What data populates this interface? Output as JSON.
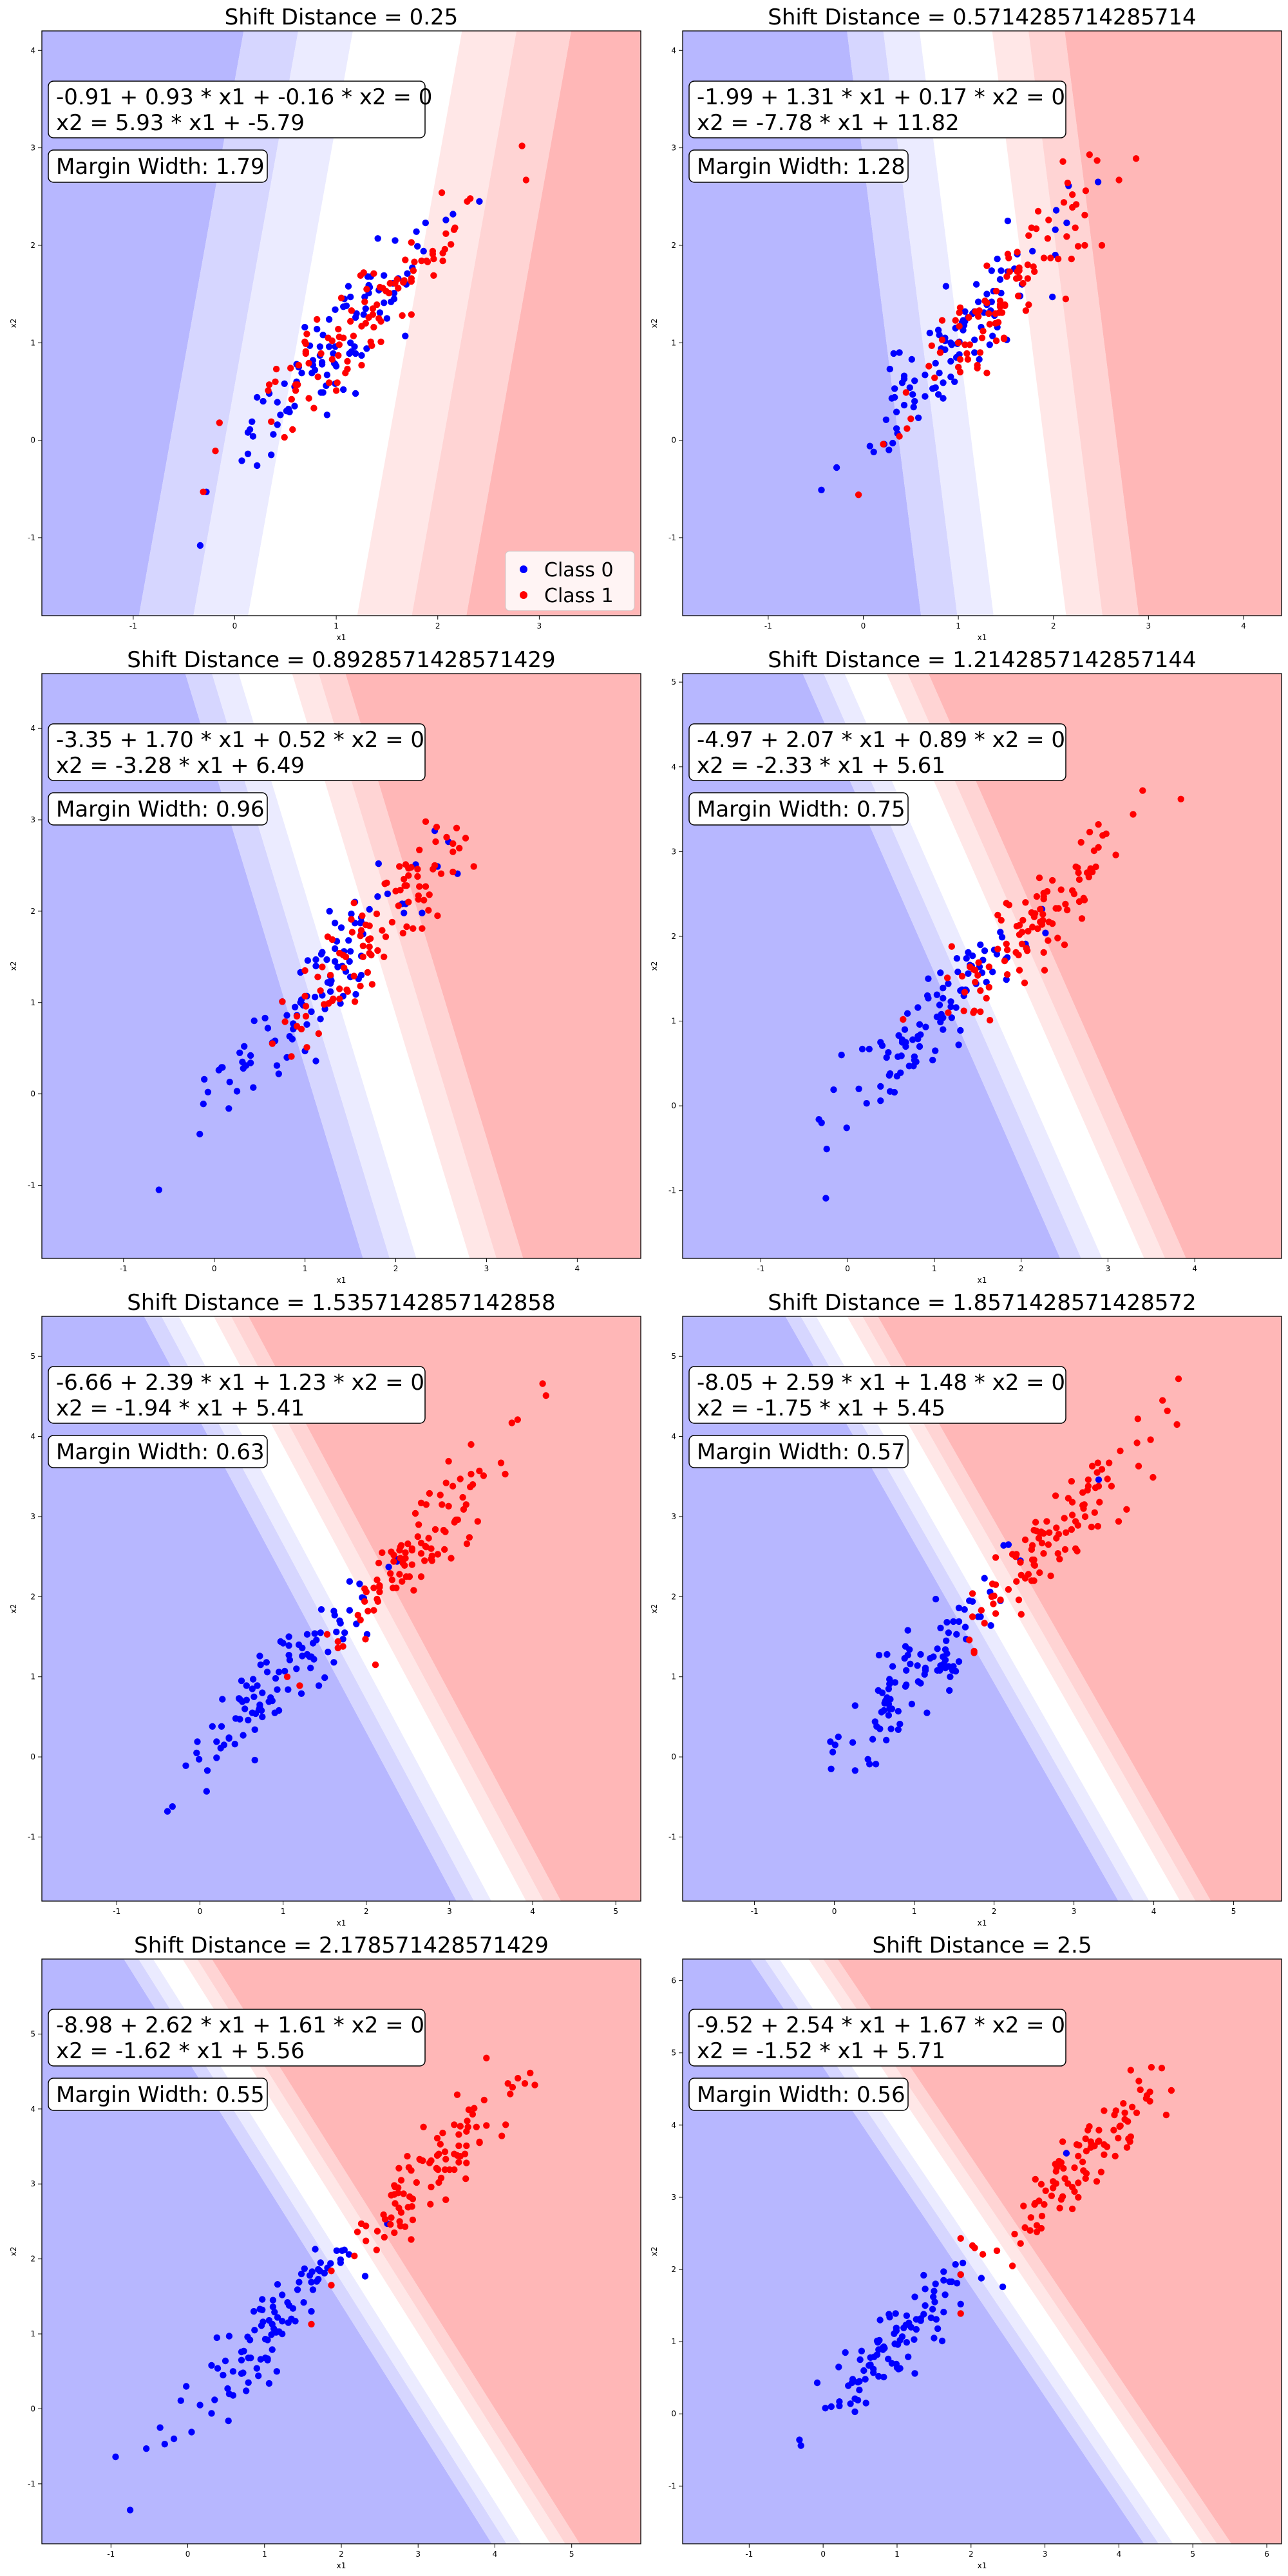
{
  "figure": {
    "rows": 4,
    "cols": 2
  },
  "colors": {
    "class0": "#0000ff",
    "class1": "#ff0000",
    "bg_neg_strong": "#b7b7ff",
    "bg_neg_mid": "#d6d6ff",
    "bg_neg_light": "#ebebff",
    "bg_white": "#ffffff",
    "bg_pos_light": "#ffe7e7",
    "bg_pos_mid": "#ffd4d4",
    "bg_pos_strong": "#ffb7b7"
  },
  "legend": {
    "panel_index": 0,
    "placement": "lower right",
    "entries": [
      "Class 0",
      "Class 1"
    ]
  },
  "chart_data": [
    {
      "type": "scatter",
      "title": "Shift Distance = 0.25",
      "xlabel": "x1",
      "ylabel": "x2",
      "xlim": [
        -1.9,
        4.0
      ],
      "ylim": [
        -1.8,
        4.2
      ],
      "xticks": [
        -1,
        0,
        1,
        2,
        3
      ],
      "yticks": [
        -1,
        0,
        1,
        2,
        3,
        4
      ],
      "equation": "-0.91 + 0.93 * x1 + -0.16 * x2 = 0",
      "line_equation": "x2 = 5.93 * x1 + -5.79",
      "margin_width": "Margin Width: 1.79",
      "shift": 0.25,
      "decision": {
        "b": -0.91,
        "w1": 0.93,
        "w2": -0.16
      },
      "series": [
        {
          "name": "Class 0",
          "points": []
        },
        {
          "name": "Class 1",
          "points": []
        }
      ]
    },
    {
      "type": "scatter",
      "title": "Shift Distance = 0.5714285714285714",
      "xlabel": "x1",
      "ylabel": "x2",
      "xlim": [
        -1.9,
        4.4
      ],
      "ylim": [
        -1.8,
        4.2
      ],
      "xticks": [
        -1,
        0,
        1,
        2,
        3,
        4
      ],
      "yticks": [
        -1,
        0,
        1,
        2,
        3,
        4
      ],
      "equation": "-1.99 + 1.31 * x1 + 0.17 * x2 = 0",
      "line_equation": "x2 = -7.78 * x1 + 11.82",
      "margin_width": "Margin Width: 1.28",
      "shift": 0.5714285714285714,
      "decision": {
        "b": -1.99,
        "w1": 1.31,
        "w2": 0.17
      },
      "series": [
        {
          "name": "Class 0",
          "points": []
        },
        {
          "name": "Class 1",
          "points": []
        }
      ]
    },
    {
      "type": "scatter",
      "title": "Shift Distance = 0.8928571428571429",
      "xlabel": "x1",
      "ylabel": "x2",
      "xlim": [
        -1.9,
        4.7
      ],
      "ylim": [
        -1.8,
        4.6
      ],
      "xticks": [
        -1,
        0,
        1,
        2,
        3,
        4
      ],
      "yticks": [
        -1,
        0,
        1,
        2,
        3,
        4
      ],
      "equation": "-3.35 + 1.70 * x1 + 0.52 * x2 = 0",
      "line_equation": "x2 = -3.28 * x1 + 6.49",
      "margin_width": "Margin Width: 0.96",
      "shift": 0.8928571428571429,
      "decision": {
        "b": -3.35,
        "w1": 1.7,
        "w2": 0.52
      },
      "series": [
        {
          "name": "Class 0",
          "points": []
        },
        {
          "name": "Class 1",
          "points": []
        }
      ]
    },
    {
      "type": "scatter",
      "title": "Shift Distance = 1.2142857142857144",
      "xlabel": "x1",
      "ylabel": "x2",
      "xlim": [
        -1.9,
        5.0
      ],
      "ylim": [
        -1.8,
        5.1
      ],
      "xticks": [
        -1,
        0,
        1,
        2,
        3,
        4
      ],
      "yticks": [
        -1,
        0,
        1,
        2,
        3,
        4,
        5
      ],
      "equation": "-4.97 + 2.07 * x1 + 0.89 * x2 = 0",
      "line_equation": "x2 = -2.33 * x1 + 5.61",
      "margin_width": "Margin Width: 0.75",
      "shift": 1.2142857142857144,
      "decision": {
        "b": -4.97,
        "w1": 2.07,
        "w2": 0.89
      },
      "series": [
        {
          "name": "Class 0",
          "points": []
        },
        {
          "name": "Class 1",
          "points": []
        }
      ]
    },
    {
      "type": "scatter",
      "title": "Shift Distance = 1.5357142857142858",
      "xlabel": "x1",
      "ylabel": "x2",
      "xlim": [
        -1.9,
        5.3
      ],
      "ylim": [
        -1.8,
        5.5
      ],
      "xticks": [
        -1,
        0,
        1,
        2,
        3,
        4,
        5
      ],
      "yticks": [
        -1,
        0,
        1,
        2,
        3,
        4,
        5
      ],
      "equation": "-6.66 + 2.39 * x1 + 1.23 * x2 = 0",
      "line_equation": "x2 = -1.94 * x1 + 5.41",
      "margin_width": "Margin Width: 0.63",
      "shift": 1.5357142857142858,
      "decision": {
        "b": -6.66,
        "w1": 2.39,
        "w2": 1.23
      },
      "series": [
        {
          "name": "Class 0",
          "points": []
        },
        {
          "name": "Class 1",
          "points": []
        }
      ]
    },
    {
      "type": "scatter",
      "title": "Shift Distance = 1.8571428571428572",
      "xlabel": "x1",
      "ylabel": "x2",
      "xlim": [
        -1.9,
        5.6
      ],
      "ylim": [
        -1.8,
        5.5
      ],
      "xticks": [
        -1,
        0,
        1,
        2,
        3,
        4,
        5
      ],
      "yticks": [
        -1,
        0,
        1,
        2,
        3,
        4,
        5
      ],
      "equation": "-8.05 + 2.59 * x1 + 1.48 * x2 = 0",
      "line_equation": "x2 = -1.75 * x1 + 5.45",
      "margin_width": "Margin Width: 0.57",
      "shift": 1.8571428571428572,
      "decision": {
        "b": -8.05,
        "w1": 2.59,
        "w2": 1.48
      },
      "series": [
        {
          "name": "Class 0",
          "points": []
        },
        {
          "name": "Class 1",
          "points": []
        }
      ]
    },
    {
      "type": "scatter",
      "title": "Shift Distance = 2.178571428571429",
      "xlabel": "x1",
      "ylabel": "x2",
      "xlim": [
        -1.9,
        5.9
      ],
      "ylim": [
        -1.8,
        6.0
      ],
      "xticks": [
        -1,
        0,
        1,
        2,
        3,
        4,
        5
      ],
      "yticks": [
        -1,
        0,
        1,
        2,
        3,
        4,
        5
      ],
      "equation": "-8.98 + 2.62 * x1 + 1.61 * x2 = 0",
      "line_equation": "x2 = -1.62 * x1 + 5.56",
      "margin_width": "Margin Width: 0.55",
      "shift": 2.178571428571429,
      "decision": {
        "b": -8.98,
        "w1": 2.62,
        "w2": 1.61
      },
      "series": [
        {
          "name": "Class 0",
          "points": []
        },
        {
          "name": "Class 1",
          "points": []
        }
      ]
    },
    {
      "type": "scatter",
      "title": "Shift Distance = 2.5",
      "xlabel": "x1",
      "ylabel": "x2",
      "xlim": [
        -1.9,
        6.2
      ],
      "ylim": [
        -1.8,
        6.3
      ],
      "xticks": [
        -1,
        0,
        1,
        2,
        3,
        4,
        5,
        6
      ],
      "yticks": [
        -1,
        0,
        1,
        2,
        3,
        4,
        5,
        6
      ],
      "equation": "-9.52 + 2.54 * x1 + 1.67 * x2 = 0",
      "line_equation": "x2 = -1.52 * x1 + 5.71",
      "margin_width": "Margin Width: 0.56",
      "shift": 2.5,
      "decision": {
        "b": -9.52,
        "w1": 2.54,
        "w2": 1.67
      },
      "series": [
        {
          "name": "Class 0",
          "points": []
        },
        {
          "name": "Class 1",
          "points": []
        }
      ]
    }
  ]
}
